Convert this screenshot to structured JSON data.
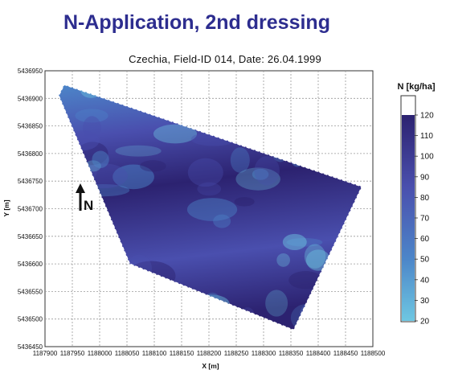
{
  "title": "N-Application, 2nd dressing",
  "subtitle": "Czechia, Field-ID 014, Date: 26.04.1999",
  "legend": {
    "title": "N [kg/ha]",
    "ticks": [
      "120",
      "110",
      "100",
      "90",
      "80",
      "70",
      "60",
      "50",
      "40",
      "30",
      "20"
    ],
    "colors": {
      "low": "#6ec7e2",
      "mid_low": "#4c86c9",
      "mid": "#4a4fae",
      "high": "#2c2270"
    }
  },
  "north_arrow": {
    "label": "N",
    "icon": "north-arrow-icon"
  },
  "axes": {
    "xlabel": "X [m]",
    "ylabel": "Y [m]",
    "x_ticks": [
      "1187900",
      "1187950",
      "1188000",
      "1188050",
      "1188100",
      "1188150",
      "1188200",
      "1188250",
      "1188300",
      "1188350",
      "1188400",
      "1188450",
      "1188500"
    ],
    "y_ticks": [
      "5436950",
      "5436900",
      "5436850",
      "5436800",
      "5436750",
      "5436700",
      "5436650",
      "5436600",
      "5436550",
      "5436500",
      "5436450"
    ],
    "xlim": [
      1187900,
      1188500
    ],
    "ylim": [
      5436450,
      5436950
    ],
    "grid": true
  },
  "field": {
    "boundary": [
      [
        1187935,
        5436925
      ],
      [
        1188480,
        5436740
      ],
      [
        1188355,
        5436480
      ],
      [
        1188055,
        5436600
      ],
      [
        1187925,
        5436905
      ]
    ],
    "value_range_kg_ha": [
      20,
      120
    ]
  }
}
